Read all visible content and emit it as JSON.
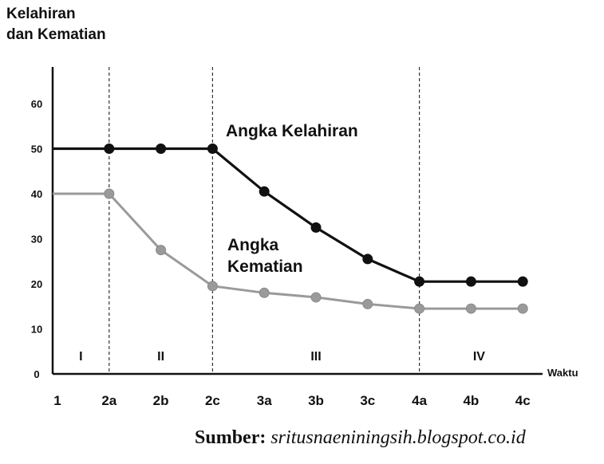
{
  "chart_data": {
    "type": "line",
    "ylabel_lines": [
      "Kelahiran",
      "dan Kematian"
    ],
    "xlabel": "Waktu",
    "x": [
      "1",
      "2a",
      "2b",
      "2c",
      "3a",
      "3b",
      "3c",
      "4a",
      "4b",
      "4c"
    ],
    "ylim": [
      0,
      60
    ],
    "yticks": [
      0,
      10,
      20,
      30,
      40,
      50,
      60
    ],
    "grid": false,
    "phase_labels": [
      "I",
      "II",
      "III",
      "IV"
    ],
    "phase_boundaries": [
      "2a",
      "2c",
      "4a"
    ],
    "series": [
      {
        "name": "Angka Kelahiran",
        "label_lines": [
          "Angka Kelahiran"
        ],
        "values": [
          50,
          50,
          50,
          50,
          40.5,
          32.5,
          25.5,
          20.5,
          20.5,
          20.5
        ],
        "markers_from": "2a",
        "color": "#111111"
      },
      {
        "name": "Angka Kematian",
        "label_lines": [
          "Angka",
          "Kematian"
        ],
        "values": [
          40,
          40,
          27.5,
          19.5,
          18,
          17,
          15.5,
          14.5,
          14.5,
          14.5
        ],
        "markers_from": "2a",
        "color": "#9a9a9a"
      }
    ]
  },
  "source": {
    "label": "Sumber:",
    "text": "sritusnaeniningsih.blogspot.co.id"
  }
}
